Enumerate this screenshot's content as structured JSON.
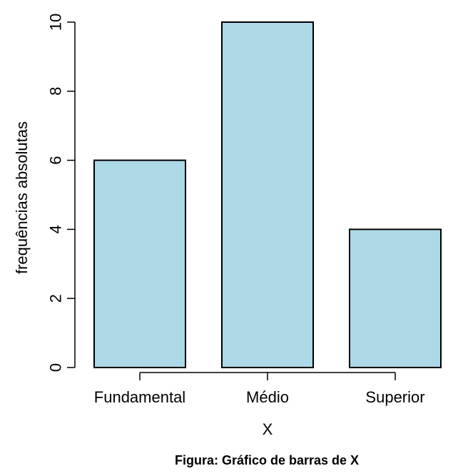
{
  "chart_data": {
    "type": "bar",
    "categories": [
      "Fundamental",
      "Médio",
      "Superior"
    ],
    "values": [
      6,
      10,
      4
    ],
    "xlabel": "X",
    "ylabel": "frequências absolutas",
    "ylim": [
      0,
      10
    ],
    "yticks": [
      0,
      2,
      4,
      6,
      8,
      10
    ],
    "grid": false,
    "legend": "none",
    "bar_color": "#add8e6",
    "edge_color": "#000000"
  },
  "caption": "Figura: Gráfico de barras de X"
}
